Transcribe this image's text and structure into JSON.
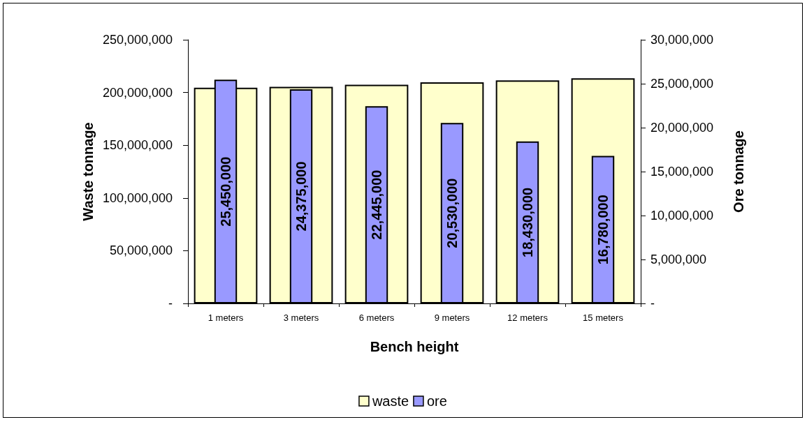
{
  "chart_data": {
    "type": "bar",
    "xlabel": "Bench height",
    "ylabel": "Waste tonnage",
    "y2label": "Ore tonnage",
    "categories": [
      "1 meters",
      "3 meters",
      "6 meters",
      "9 meters",
      "12 meters",
      "15 meters"
    ],
    "series": [
      {
        "name": "waste",
        "color": "#ffffcc",
        "values": [
          204500000,
          205400000,
          207300000,
          209600000,
          211500000,
          213400000
        ]
      },
      {
        "name": "ore",
        "color": "#9999ff",
        "axis": "y2",
        "values": [
          25450000,
          24375000,
          22445000,
          20530000,
          18430000,
          16780000
        ],
        "value_labels": [
          "25,450,000",
          "24,375,000",
          "22,445,000",
          "20,530,000",
          "18,430,000",
          "16,780,000"
        ]
      }
    ],
    "ylim": [
      0,
      250000000
    ],
    "yticks": [
      {
        "value": 0,
        "label": "-"
      },
      {
        "value": 50000000,
        "label": "50,000,000"
      },
      {
        "value": 100000000,
        "label": "100,000,000"
      },
      {
        "value": 150000000,
        "label": "150,000,000"
      },
      {
        "value": 200000000,
        "label": "200,000,000"
      },
      {
        "value": 250000000,
        "label": "250,000,000"
      }
    ],
    "y2lim": [
      0,
      30000000
    ],
    "y2ticks": [
      {
        "value": 0,
        "label": "-"
      },
      {
        "value": 5000000,
        "label": "5,000,000"
      },
      {
        "value": 10000000,
        "label": "10,000,000"
      },
      {
        "value": 15000000,
        "label": "15,000,000"
      },
      {
        "value": 20000000,
        "label": "20,000,000"
      },
      {
        "value": 25000000,
        "label": "25,000,000"
      },
      {
        "value": 30000000,
        "label": "30,000,000"
      }
    ],
    "grid": false,
    "legend": "bottom"
  }
}
